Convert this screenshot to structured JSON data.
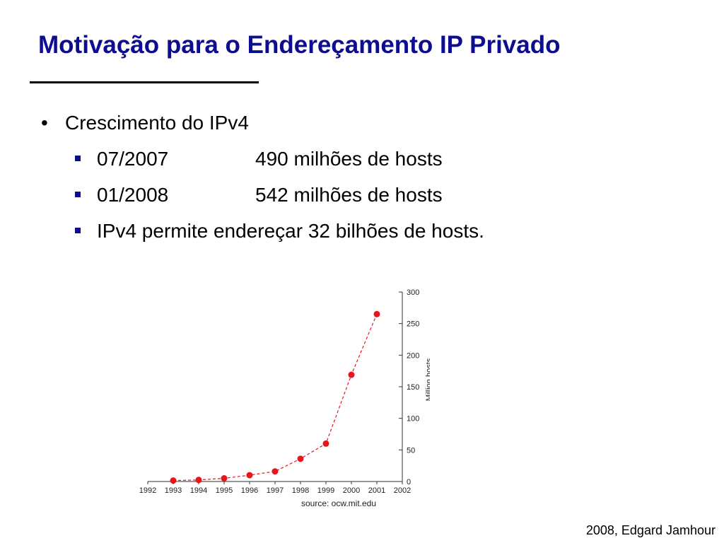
{
  "slide": {
    "title": "Motivação para o Endereçamento IP Privado",
    "bullet": "Crescimento do IPv4",
    "sub_bullets": [
      {
        "date": "07/2007",
        "text": "490 milhões de hosts"
      },
      {
        "date": "01/2008",
        "text": "542 milhões de hosts"
      },
      {
        "date": "",
        "text": "IPv4 permite endereçar 32 bilhões de hosts."
      }
    ],
    "footer": "2008, Edgard Jamhour"
  },
  "colors": {
    "title": "#0d0d8f",
    "series": "#e8141e",
    "bullet_square": "#0d0d8f"
  },
  "chart_data": {
    "type": "line",
    "x": [
      1993,
      1994,
      1995,
      1996,
      1997,
      1998,
      1999,
      2000,
      2001
    ],
    "series": [
      {
        "values": [
          1.5,
          2.5,
          5,
          10,
          16,
          36,
          60,
          169,
          265
        ]
      }
    ],
    "xticks": [
      "1992",
      "1993",
      "1994",
      "1995",
      "1996",
      "1997",
      "1998",
      "1999",
      "2000",
      "2001",
      "2002"
    ],
    "yticks": [
      "0",
      "50",
      "100",
      "150",
      "200",
      "250",
      "300"
    ],
    "xlim": [
      1992,
      2002
    ],
    "ylim": [
      0,
      300
    ],
    "ylabel": "Million hosts",
    "source": "source: ocw.mit.edu",
    "line_style": "dashed",
    "y_axis_side": "right"
  }
}
